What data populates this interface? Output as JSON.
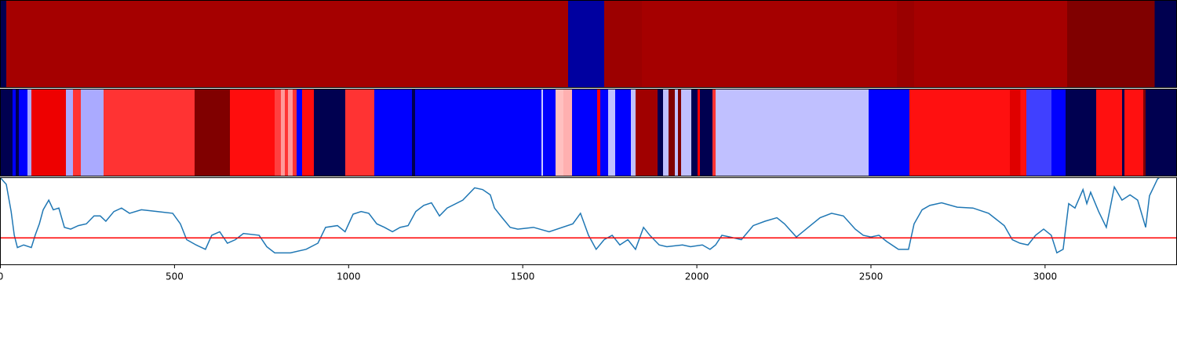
{
  "chart_data": [
    {
      "type": "band",
      "xlim": [
        0,
        3380
      ],
      "edges": [
        0,
        18,
        1631,
        1735,
        1843,
        2575,
        2625,
        3064,
        3316,
        3380
      ],
      "colors": [
        "#000050",
        "#a50000",
        "#0000a0",
        "#9c0000",
        "#a50000",
        "#9a0000",
        "#a50000",
        "#800000",
        "#000050"
      ]
    },
    {
      "type": "band",
      "xlim": [
        0,
        3380
      ],
      "edges": [
        0,
        36,
        45,
        54,
        79,
        90,
        189,
        210,
        232,
        297,
        559,
        660,
        789,
        807,
        818,
        827,
        840,
        852,
        868,
        901,
        991,
        1075,
        1183,
        1192,
        1555,
        1559,
        1595,
        1618,
        1643,
        1715,
        1724,
        1746,
        1767,
        1812,
        1825,
        1888,
        1904,
        1920,
        1938,
        1947,
        1956,
        1985,
        2003,
        2010,
        2046,
        2055,
        2494,
        2612,
        2900,
        2931,
        2947,
        3019,
        3060,
        3148,
        3222,
        3229,
        3283,
        3290,
        3380
      ],
      "colors": [
        "#000050",
        "#0000ff",
        "#000050",
        "#0000ff",
        "#aaaaff",
        "#ee0000",
        "#aaaaff",
        "#ff3333",
        "#aaaaff",
        "#ff3333",
        "#800000",
        "#ff0d0d",
        "#ff4040",
        "#ff9999",
        "#ff3333",
        "#ff9999",
        "#ff3333",
        "#0000ff",
        "#ff0d0d",
        "#000050",
        "#ff3333",
        "#0000ff",
        "#000050",
        "#0000ff",
        "#ccccff",
        "#0000ff",
        "#ffc0c0",
        "#ffb0b0",
        "#0000ff",
        "#ff0000",
        "#0000ff",
        "#c0c0ff",
        "#0000ff",
        "#c0c0ff",
        "#a00000",
        "#000050",
        "#c0c0ff",
        "#800000",
        "#c0c0ff",
        "#800000",
        "#c0c0ff",
        "#000050",
        "#ff0000",
        "#000050",
        "#ff3333",
        "#c0c0ff",
        "#0000ff",
        "#ff1010",
        "#e00000",
        "#ff1010",
        "#4040ff",
        "#0000ff",
        "#000050",
        "#ff1010",
        "#000050",
        "#ff1010",
        "#800000",
        "#000050"
      ]
    },
    {
      "type": "line",
      "xlim": [
        0,
        3380
      ],
      "ylim": [
        0,
        1
      ],
      "xticks": [
        0,
        500,
        1000,
        1500,
        2000,
        2500,
        3000
      ],
      "color": "#1f77b4",
      "hline": 0.31,
      "hline_color": "#ff0000",
      "x": [
        0,
        18,
        32,
        41,
        50,
        68,
        90,
        101,
        113,
        124,
        140,
        153,
        169,
        185,
        203,
        225,
        248,
        270,
        288,
        304,
        327,
        349,
        372,
        406,
        451,
        496,
        518,
        536,
        563,
        590,
        608,
        631,
        653,
        676,
        699,
        744,
        766,
        789,
        834,
        879,
        913,
        935,
        969,
        991,
        1014,
        1037,
        1059,
        1082,
        1104,
        1127,
        1149,
        1172,
        1194,
        1217,
        1239,
        1262,
        1284,
        1329,
        1363,
        1386,
        1408,
        1420,
        1442,
        1465,
        1487,
        1532,
        1577,
        1645,
        1667,
        1690,
        1712,
        1735,
        1758,
        1780,
        1803,
        1825,
        1848,
        1866,
        1893,
        1915,
        1960,
        1983,
        2017,
        2039,
        2055,
        2073,
        2096,
        2129,
        2163,
        2197,
        2231,
        2253,
        2287,
        2321,
        2355,
        2388,
        2422,
        2456,
        2479,
        2501,
        2524,
        2546,
        2580,
        2609,
        2625,
        2648,
        2670,
        2704,
        2749,
        2794,
        2839,
        2884,
        2907,
        2929,
        2952,
        2974,
        2997,
        3019,
        3035,
        3053,
        3069,
        3087,
        3110,
        3121,
        3132,
        3155,
        3177,
        3200,
        3222,
        3245,
        3267,
        3290,
        3301,
        3312,
        3324,
        3330
      ],
      "values": [
        1.0,
        0.92,
        0.61,
        0.34,
        0.2,
        0.23,
        0.2,
        0.34,
        0.47,
        0.63,
        0.74,
        0.63,
        0.65,
        0.43,
        0.41,
        0.45,
        0.47,
        0.56,
        0.56,
        0.5,
        0.61,
        0.65,
        0.59,
        0.63,
        0.61,
        0.59,
        0.47,
        0.29,
        0.23,
        0.18,
        0.34,
        0.38,
        0.25,
        0.29,
        0.36,
        0.34,
        0.21,
        0.14,
        0.14,
        0.18,
        0.25,
        0.43,
        0.45,
        0.38,
        0.58,
        0.61,
        0.59,
        0.47,
        0.43,
        0.38,
        0.43,
        0.45,
        0.61,
        0.68,
        0.71,
        0.56,
        0.65,
        0.74,
        0.88,
        0.86,
        0.8,
        0.65,
        0.54,
        0.43,
        0.41,
        0.43,
        0.38,
        0.47,
        0.59,
        0.34,
        0.18,
        0.29,
        0.34,
        0.23,
        0.29,
        0.18,
        0.43,
        0.34,
        0.23,
        0.21,
        0.23,
        0.21,
        0.23,
        0.18,
        0.23,
        0.34,
        0.32,
        0.29,
        0.45,
        0.5,
        0.54,
        0.47,
        0.32,
        0.43,
        0.54,
        0.59,
        0.56,
        0.41,
        0.34,
        0.32,
        0.34,
        0.27,
        0.18,
        0.18,
        0.47,
        0.63,
        0.68,
        0.71,
        0.66,
        0.65,
        0.59,
        0.45,
        0.29,
        0.25,
        0.23,
        0.34,
        0.41,
        0.34,
        0.14,
        0.18,
        0.7,
        0.65,
        0.86,
        0.7,
        0.83,
        0.61,
        0.43,
        0.89,
        0.74,
        0.8,
        0.74,
        0.43,
        0.79,
        0.88,
        0.98,
        1.0
      ]
    }
  ]
}
